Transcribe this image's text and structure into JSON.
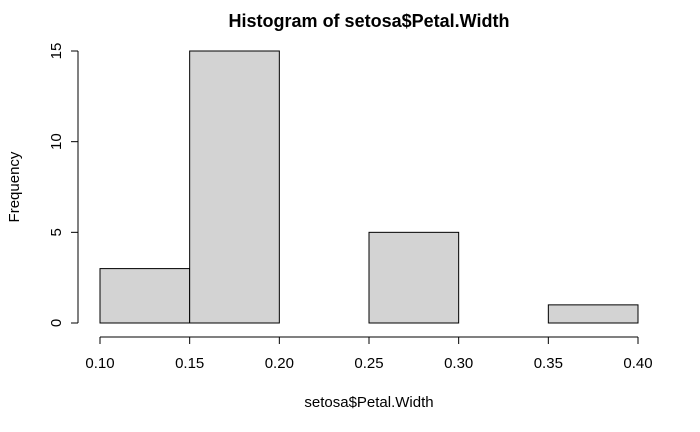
{
  "chart_data": {
    "type": "bar",
    "title": "Histogram of setosa$Petal.Width",
    "xlabel": "setosa$Petal.Width",
    "ylabel": "Frequency",
    "bins": [
      {
        "x0": 0.1,
        "x1": 0.15,
        "count": 3
      },
      {
        "x0": 0.15,
        "x1": 0.2,
        "count": 15
      },
      {
        "x0": 0.2,
        "x1": 0.25,
        "count": 0
      },
      {
        "x0": 0.25,
        "x1": 0.3,
        "count": 5
      },
      {
        "x0": 0.3,
        "x1": 0.35,
        "count": 0
      },
      {
        "x0": 0.35,
        "x1": 0.4,
        "count": 1
      }
    ],
    "xlim": [
      0.1,
      0.4
    ],
    "ylim": [
      0,
      15
    ],
    "x_ticks": [
      "0.10",
      "0.15",
      "0.20",
      "0.25",
      "0.30",
      "0.35",
      "0.40"
    ],
    "y_ticks": [
      "0",
      "5",
      "10",
      "15"
    ],
    "bar_color": "#d3d3d3",
    "grid": false
  }
}
